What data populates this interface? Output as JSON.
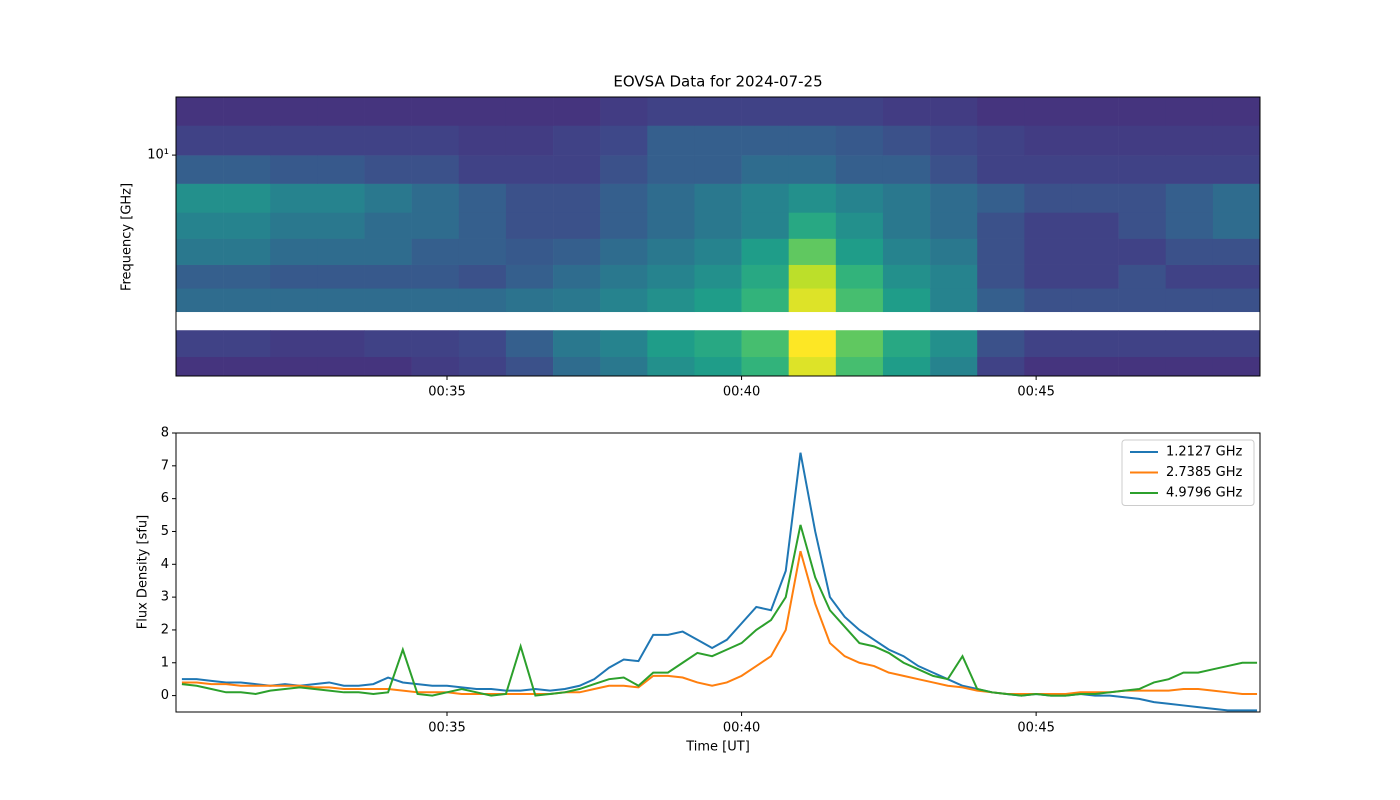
{
  "chart_data": [
    {
      "type": "heatmap",
      "title": "EOVSA Data for 2024-07-25",
      "ylabel": "Frequency [GHz]",
      "ylog": true,
      "xbins": [
        30.4,
        31.2,
        32.0,
        32.8,
        33.6,
        34.4,
        35.2,
        36.0,
        36.8,
        37.6,
        38.4,
        39.2,
        40.0,
        40.8,
        41.6,
        42.4,
        43.2,
        44.0,
        44.8,
        45.6,
        46.4,
        47.2,
        48.0,
        48.8
      ],
      "ybins": [
        1.07,
        1.3,
        1.7,
        2.05,
        2.6,
        3.3,
        4.3,
        5.6,
        7.5,
        10,
        13.5,
        18
      ],
      "z": [
        [
          0.15,
          0.15,
          0.15,
          0.15,
          0.15,
          0.18,
          0.2,
          0.25,
          0.35,
          0.4,
          0.5,
          0.55,
          0.65,
          0.95,
          0.7,
          0.55,
          0.45,
          0.2,
          0.15,
          0.15,
          0.15,
          0.15,
          0.15
        ],
        [
          0.2,
          0.2,
          0.18,
          0.18,
          0.2,
          0.2,
          0.22,
          0.3,
          0.4,
          0.45,
          0.55,
          0.6,
          0.7,
          1.0,
          0.75,
          0.6,
          0.5,
          0.25,
          0.2,
          0.2,
          0.2,
          0.2,
          0.2
        ],
        [
          null,
          null,
          null,
          null,
          null,
          null,
          null,
          null,
          null,
          null,
          null,
          null,
          null,
          null,
          null,
          null,
          null,
          null,
          null,
          null,
          null,
          null,
          null
        ],
        [
          0.35,
          0.35,
          0.35,
          0.35,
          0.35,
          0.35,
          0.35,
          0.38,
          0.4,
          0.45,
          0.5,
          0.55,
          0.65,
          0.95,
          0.7,
          0.55,
          0.45,
          0.3,
          0.25,
          0.25,
          0.25,
          0.25,
          0.25
        ],
        [
          0.3,
          0.3,
          0.28,
          0.28,
          0.28,
          0.28,
          0.25,
          0.3,
          0.35,
          0.4,
          0.45,
          0.5,
          0.6,
          0.9,
          0.65,
          0.5,
          0.45,
          0.25,
          0.2,
          0.2,
          0.25,
          0.2,
          0.2
        ],
        [
          0.4,
          0.4,
          0.35,
          0.35,
          0.35,
          0.3,
          0.3,
          0.28,
          0.3,
          0.35,
          0.4,
          0.45,
          0.55,
          0.75,
          0.55,
          0.45,
          0.4,
          0.25,
          0.2,
          0.2,
          0.2,
          0.25,
          0.25
        ],
        [
          0.45,
          0.45,
          0.4,
          0.4,
          0.35,
          0.35,
          0.3,
          0.25,
          0.25,
          0.3,
          0.35,
          0.4,
          0.45,
          0.6,
          0.5,
          0.4,
          0.35,
          0.25,
          0.2,
          0.2,
          0.25,
          0.3,
          0.35
        ],
        [
          0.5,
          0.5,
          0.45,
          0.45,
          0.4,
          0.35,
          0.3,
          0.25,
          0.25,
          0.3,
          0.35,
          0.4,
          0.45,
          0.5,
          0.45,
          0.4,
          0.35,
          0.3,
          0.25,
          0.25,
          0.25,
          0.3,
          0.35
        ],
        [
          0.3,
          0.3,
          0.28,
          0.28,
          0.25,
          0.25,
          0.2,
          0.2,
          0.2,
          0.25,
          0.3,
          0.3,
          0.35,
          0.35,
          0.3,
          0.3,
          0.25,
          0.2,
          0.2,
          0.2,
          0.2,
          0.2,
          0.2
        ],
        [
          0.2,
          0.2,
          0.2,
          0.2,
          0.2,
          0.2,
          0.18,
          0.18,
          0.2,
          0.22,
          0.3,
          0.3,
          0.3,
          0.3,
          0.28,
          0.25,
          0.22,
          0.2,
          0.18,
          0.18,
          0.18,
          0.18,
          0.18
        ],
        [
          0.15,
          0.15,
          0.15,
          0.15,
          0.15,
          0.15,
          0.15,
          0.15,
          0.15,
          0.18,
          0.2,
          0.2,
          0.2,
          0.2,
          0.2,
          0.18,
          0.18,
          0.15,
          0.15,
          0.15,
          0.15,
          0.15,
          0.15
        ]
      ],
      "xlim": [
        30.4,
        48.8
      ],
      "ylim": [
        1.07,
        18
      ],
      "xticks": [
        {
          "value": 35,
          "label": "00:35"
        },
        {
          "value": 40,
          "label": "00:40"
        },
        {
          "value": 45,
          "label": "00:45"
        }
      ],
      "yticks": [
        {
          "value": 10,
          "label": "10¹"
        }
      ]
    },
    {
      "type": "line",
      "xlabel": "Time [UT]",
      "ylabel": "Flux Density [sfu]",
      "legend": "upper right",
      "x": [
        30.5,
        30.75,
        31,
        31.25,
        31.5,
        31.75,
        32,
        32.25,
        32.5,
        32.75,
        33,
        33.25,
        33.5,
        33.75,
        34,
        34.25,
        34.5,
        34.75,
        35,
        35.25,
        35.5,
        35.75,
        36,
        36.25,
        36.5,
        36.75,
        37,
        37.25,
        37.5,
        37.75,
        38,
        38.25,
        38.5,
        38.75,
        39,
        39.25,
        39.5,
        39.75,
        40,
        40.25,
        40.5,
        40.75,
        41,
        41.25,
        41.5,
        41.75,
        42,
        42.25,
        42.5,
        42.75,
        43,
        43.25,
        43.5,
        43.75,
        44,
        44.25,
        44.5,
        44.75,
        45,
        45.25,
        45.5,
        45.75,
        46,
        46.25,
        46.5,
        46.75,
        47,
        47.25,
        47.5,
        47.75,
        48,
        48.25,
        48.5,
        48.75
      ],
      "series": [
        {
          "name": "1.2127 GHz",
          "color": "#1f77b4",
          "values": [
            0.5,
            0.5,
            0.45,
            0.4,
            0.4,
            0.35,
            0.3,
            0.35,
            0.3,
            0.35,
            0.4,
            0.3,
            0.3,
            0.35,
            0.55,
            0.4,
            0.35,
            0.3,
            0.3,
            0.25,
            0.2,
            0.2,
            0.15,
            0.15,
            0.2,
            0.15,
            0.2,
            0.3,
            0.5,
            0.85,
            1.1,
            1.05,
            1.85,
            1.85,
            1.95,
            1.7,
            1.45,
            1.7,
            2.2,
            2.7,
            2.6,
            3.8,
            7.4,
            5.0,
            3.0,
            2.4,
            2.0,
            1.7,
            1.4,
            1.2,
            0.9,
            0.7,
            0.5,
            0.3,
            0.2,
            0.1,
            0.05,
            0.0,
            0.05,
            0.0,
            0.0,
            0.05,
            0.0,
            0.0,
            -0.05,
            -0.1,
            -0.2,
            -0.25,
            -0.3,
            -0.35,
            -0.4,
            -0.45,
            -0.45,
            -0.45
          ]
        },
        {
          "name": "2.7385 GHz",
          "color": "#ff7f0e",
          "values": [
            0.4,
            0.4,
            0.35,
            0.35,
            0.3,
            0.3,
            0.3,
            0.3,
            0.3,
            0.25,
            0.25,
            0.2,
            0.2,
            0.2,
            0.2,
            0.15,
            0.1,
            0.1,
            0.1,
            0.05,
            0.05,
            0.05,
            0.05,
            0.05,
            0.05,
            0.05,
            0.1,
            0.1,
            0.2,
            0.3,
            0.3,
            0.25,
            0.6,
            0.6,
            0.55,
            0.4,
            0.3,
            0.4,
            0.6,
            0.9,
            1.2,
            2.0,
            4.4,
            2.8,
            1.6,
            1.2,
            1.0,
            0.9,
            0.7,
            0.6,
            0.5,
            0.4,
            0.3,
            0.25,
            0.15,
            0.1,
            0.05,
            0.05,
            0.05,
            0.05,
            0.05,
            0.1,
            0.1,
            0.1,
            0.15,
            0.15,
            0.15,
            0.15,
            0.2,
            0.2,
            0.15,
            0.1,
            0.05,
            0.05
          ]
        },
        {
          "name": "4.9796 GHz",
          "color": "#2ca02c",
          "values": [
            0.35,
            0.3,
            0.2,
            0.1,
            0.1,
            0.05,
            0.15,
            0.2,
            0.25,
            0.2,
            0.15,
            0.1,
            0.1,
            0.05,
            0.1,
            1.4,
            0.05,
            0.0,
            0.1,
            0.2,
            0.1,
            0.0,
            0.05,
            1.5,
            0.0,
            0.05,
            0.1,
            0.2,
            0.35,
            0.5,
            0.55,
            0.3,
            0.7,
            0.7,
            1.0,
            1.3,
            1.2,
            1.4,
            1.6,
            2.0,
            2.3,
            3.0,
            5.2,
            3.6,
            2.6,
            2.1,
            1.6,
            1.5,
            1.3,
            1.0,
            0.8,
            0.6,
            0.5,
            1.2,
            0.2,
            0.1,
            0.05,
            0.0,
            0.05,
            0.0,
            0.0,
            0.05,
            0.05,
            0.1,
            0.15,
            0.2,
            0.4,
            0.5,
            0.7,
            0.7,
            0.8,
            0.9,
            1.0,
            1.0
          ]
        }
      ],
      "xlim": [
        30.4,
        48.8
      ],
      "ylim": [
        -0.5,
        8
      ],
      "xticks": [
        {
          "value": 35,
          "label": "00:35"
        },
        {
          "value": 40,
          "label": "00:40"
        },
        {
          "value": 45,
          "label": "00:45"
        }
      ],
      "yticks": [
        0,
        1,
        2,
        3,
        4,
        5,
        6,
        7,
        8
      ]
    }
  ]
}
